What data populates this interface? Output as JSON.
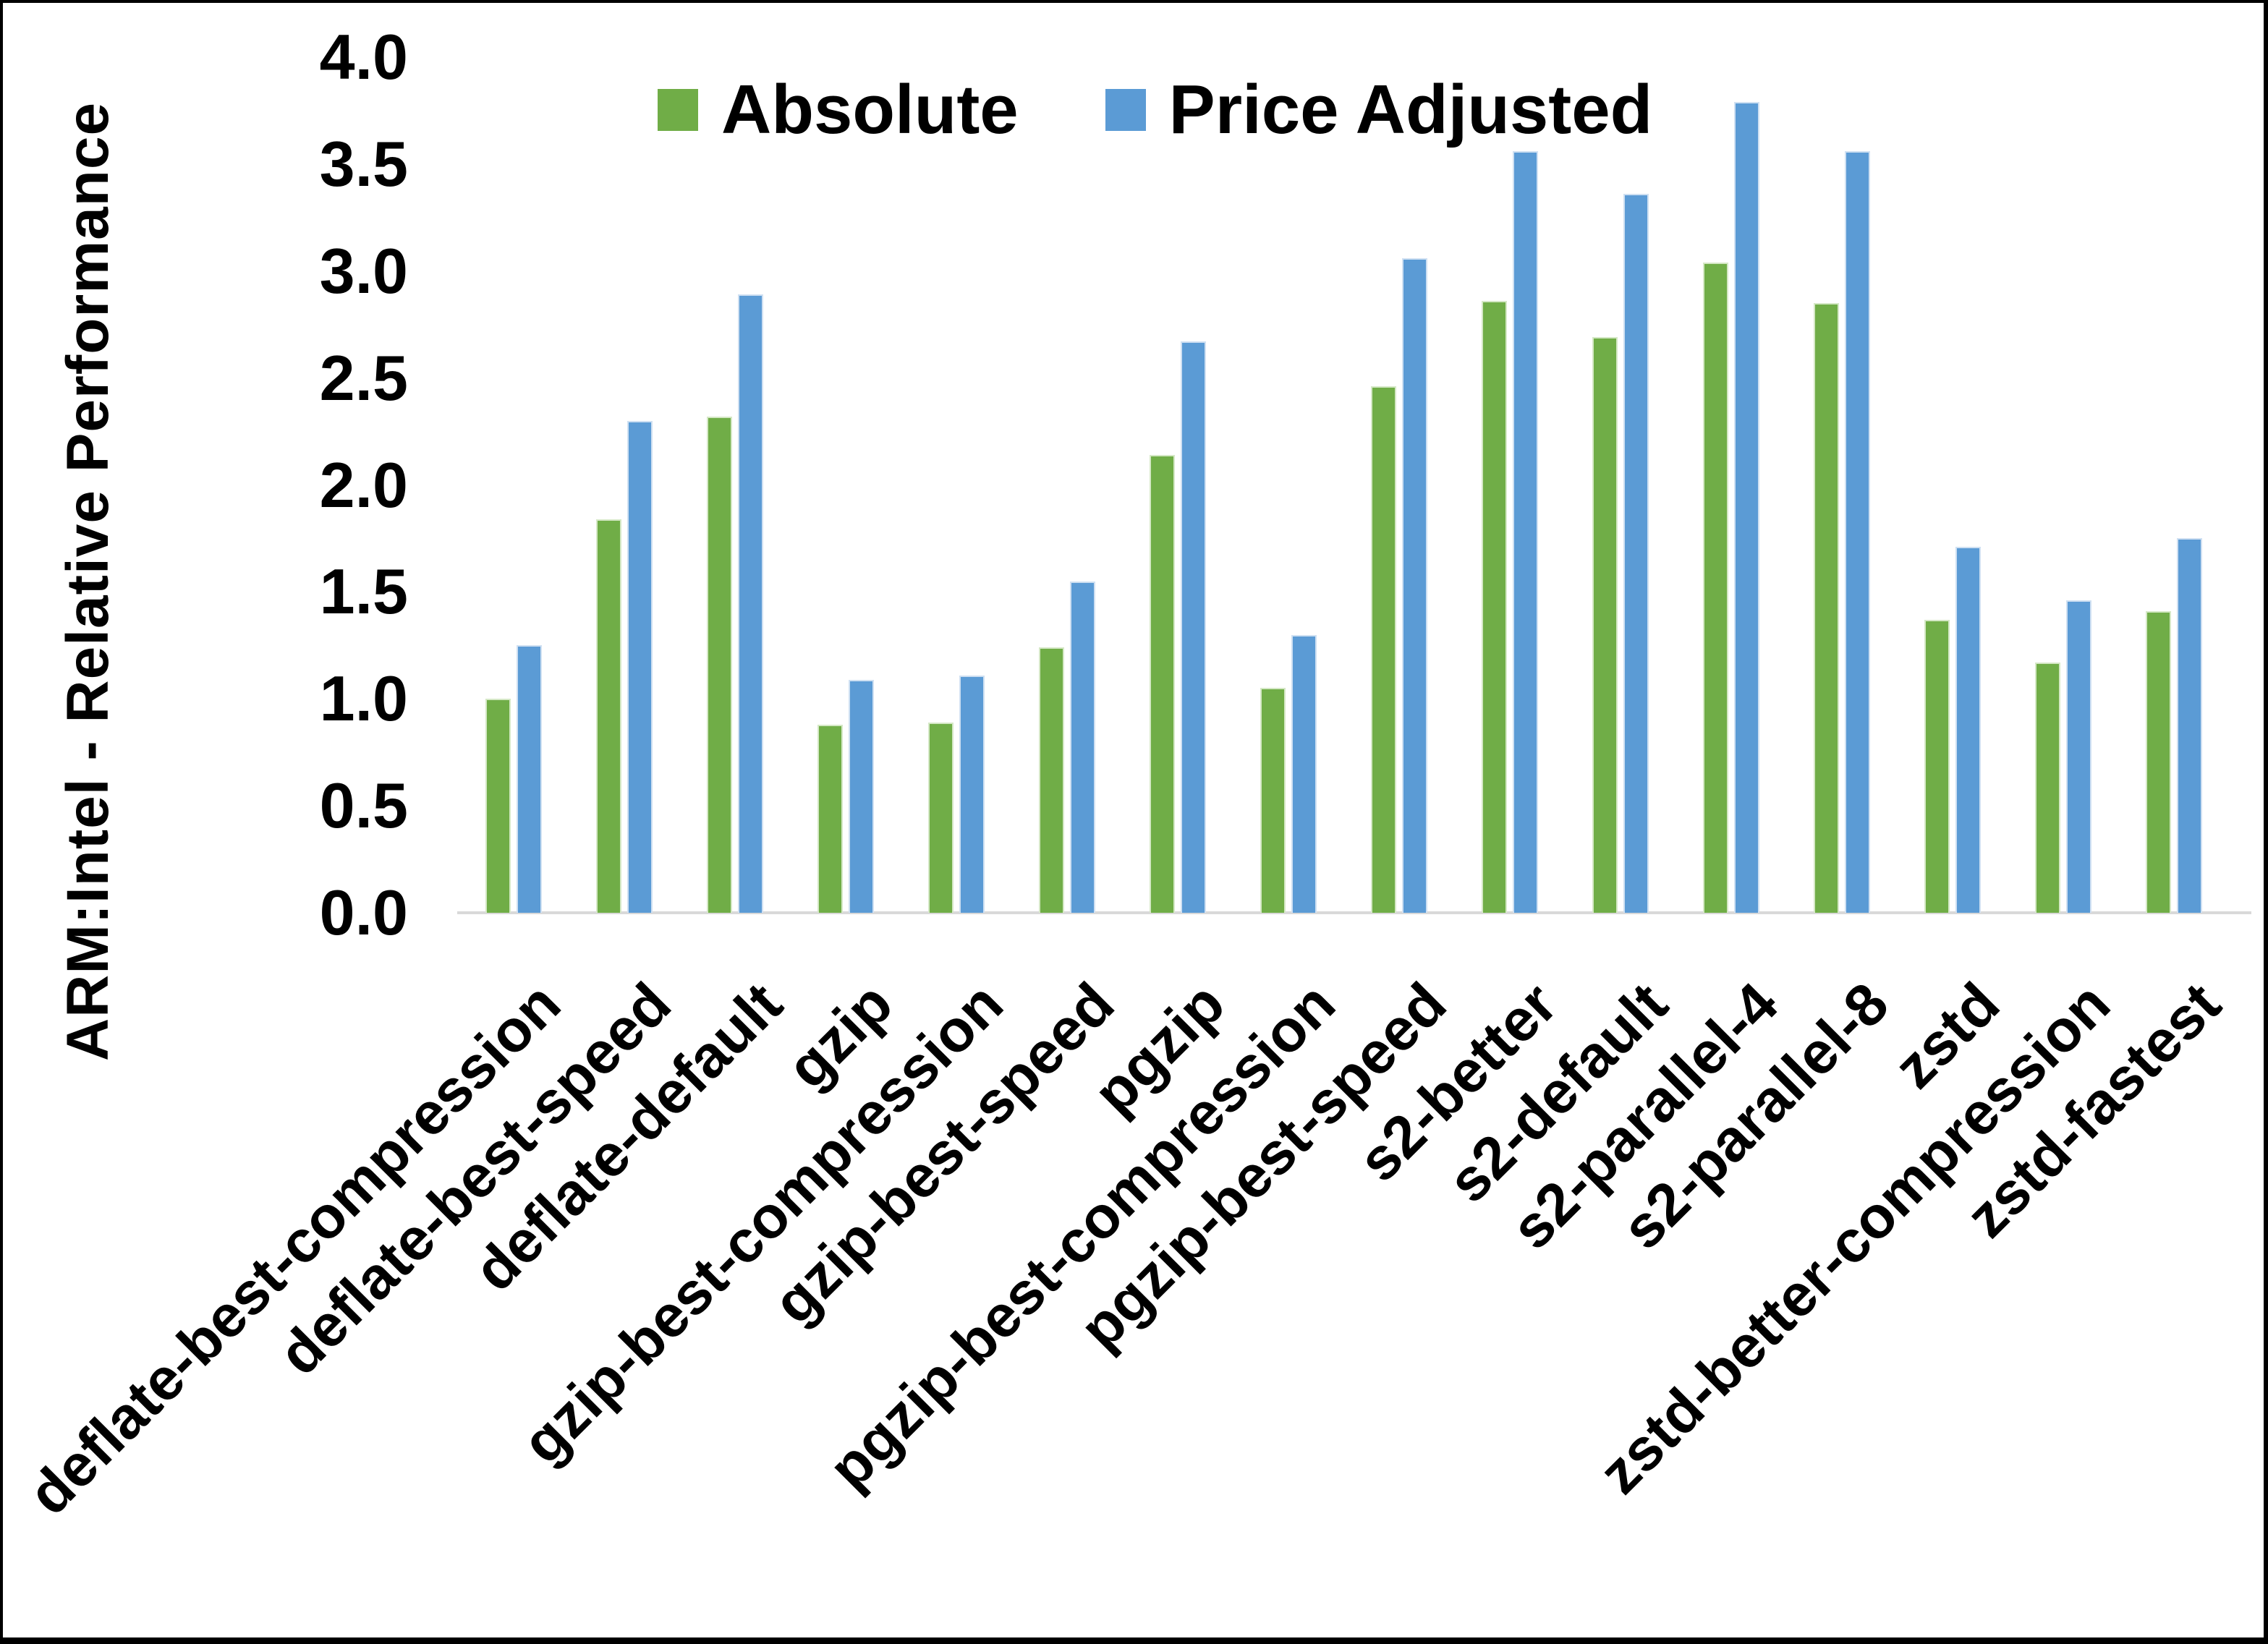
{
  "chart_data": {
    "type": "bar",
    "title": "",
    "ylabel": "ARM:Intel - Relative Performance",
    "xlabel": "",
    "ylim": [
      0.0,
      4.0
    ],
    "ytick_step": 0.5,
    "ytick_labels": [
      "0.0",
      "0.5",
      "1.0",
      "1.5",
      "2.0",
      "2.5",
      "3.0",
      "3.5",
      "4.0"
    ],
    "grid": false,
    "legend_position": "top-center",
    "background": "#FFFFFF",
    "text_color": "#000000",
    "axis_line_color": "#D9D9D9",
    "categories": [
      "deflate-best-compression",
      "deflate-best-speed",
      "deflate-default",
      "gzip",
      "gzip-best-compression",
      "gzip-best-speed",
      "pgzip",
      "pgzip-best-compression",
      "pgzip-best-speed",
      "s2-better",
      "s2-default",
      "s2-parallel-4",
      "s2-parallel-8",
      "zstd",
      "zstd-better-compression",
      "zstd-fastest"
    ],
    "series": [
      {
        "name": "Absolute",
        "color": "#70AD47",
        "edge_color": "#D5E8C6",
        "values": [
          1.0,
          1.84,
          2.32,
          0.88,
          0.89,
          1.24,
          2.14,
          1.05,
          2.46,
          2.86,
          2.69,
          3.04,
          2.85,
          1.37,
          1.17,
          1.41
        ]
      },
      {
        "name": "Price Adjusted",
        "color": "#5B9BD5",
        "edge_color": "#CFE0F2",
        "values": [
          1.25,
          2.3,
          2.89,
          1.09,
          1.11,
          1.55,
          2.67,
          1.3,
          3.06,
          3.56,
          3.36,
          3.79,
          3.56,
          1.71,
          1.46,
          1.75
        ]
      }
    ]
  }
}
